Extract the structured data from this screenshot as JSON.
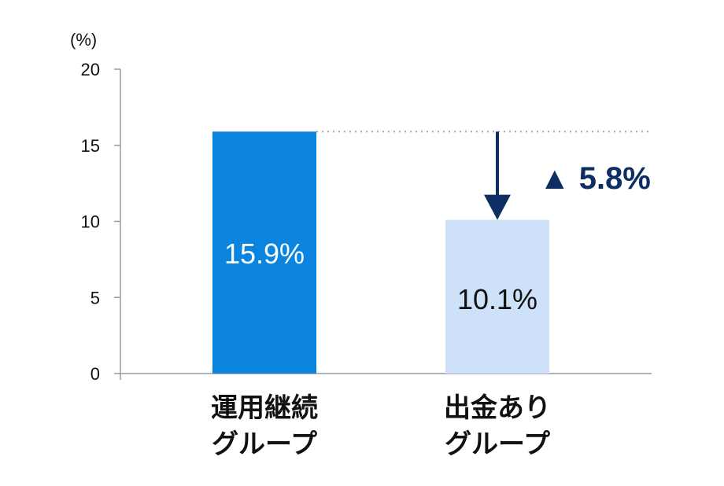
{
  "chart_data": {
    "type": "bar",
    "unit_label": "(%)",
    "ylim": [
      0,
      20
    ],
    "yticks": [
      "0",
      "5",
      "10",
      "15",
      "20"
    ],
    "categories": [
      [
        "運用継続",
        "グループ"
      ],
      [
        "出金あり",
        "グループ"
      ]
    ],
    "values": [
      15.9,
      10.1
    ],
    "value_labels": [
      "15.9%",
      "10.1%"
    ],
    "bar_colors": [
      "#0b84e0",
      "#cde1f9"
    ],
    "value_label_colors": [
      "#ffffff",
      "#111111"
    ],
    "difference": {
      "label": "▲ 5.8%",
      "from": 15.9,
      "to": 10.1,
      "color": "#0d2d63"
    },
    "grid": false,
    "legend": "none"
  }
}
